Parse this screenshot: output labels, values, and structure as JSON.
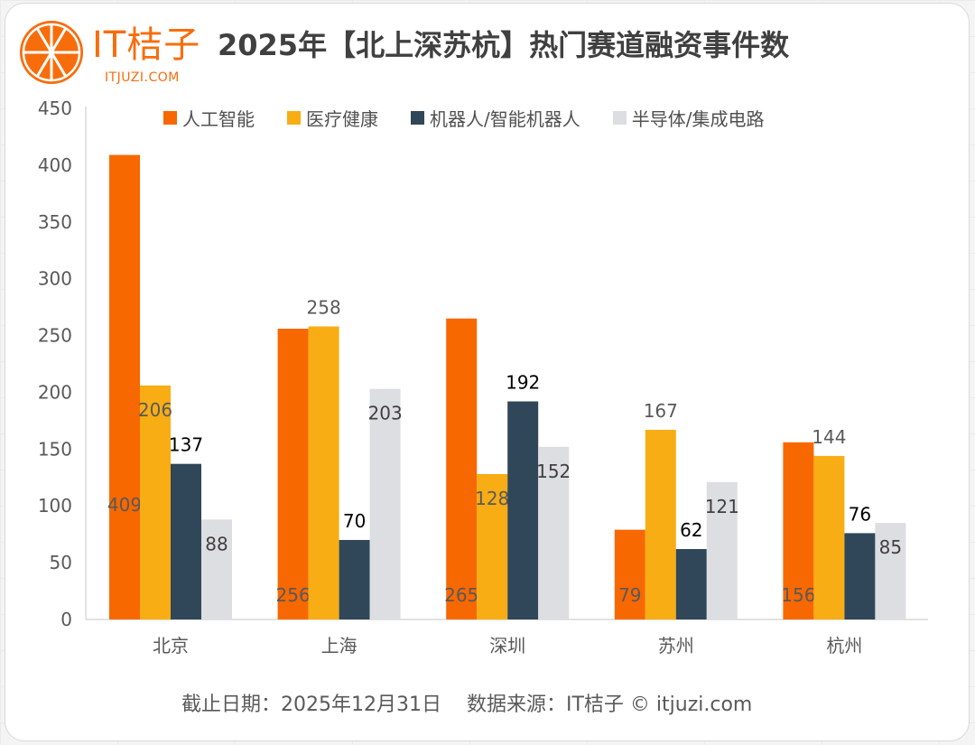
{
  "logo": {
    "name": "IT桔子",
    "domain": "ITJUZI.COM",
    "icon": "orange-slice-icon",
    "color": "#f76d0c"
  },
  "header": {
    "title": "2025年【北上深苏杭】热门赛道融资事件数"
  },
  "footer": {
    "cutoff": "截止日期：2025年12月31日",
    "source": "数据来源：IT桔子 © itjuzi.com"
  },
  "chart_data": {
    "type": "bar",
    "title": "2025年【北上深苏杭】热门赛道融资事件数",
    "xlabel": "",
    "ylabel": "",
    "ylim": [
      0,
      450
    ],
    "yticks": [
      0,
      50,
      100,
      150,
      200,
      250,
      300,
      350,
      400,
      450
    ],
    "grid": false,
    "legend_position": "top",
    "categories": [
      "北京",
      "上海",
      "深圳",
      "苏州",
      "杭州"
    ],
    "series": [
      {
        "name": "人工智能",
        "color": "#f76800",
        "values": [
          409,
          256,
          265,
          79,
          156
        ]
      },
      {
        "name": "医疗健康",
        "color": "#f8ad14",
        "values": [
          206,
          258,
          128,
          167,
          144
        ]
      },
      {
        "name": "机器人/智能机器人",
        "color": "#2f4759",
        "values": [
          137,
          70,
          192,
          62,
          76
        ]
      },
      {
        "name": "半导体/集成电路",
        "color": "#dddee2",
        "values": [
          88,
          203,
          152,
          121,
          85
        ]
      }
    ]
  }
}
